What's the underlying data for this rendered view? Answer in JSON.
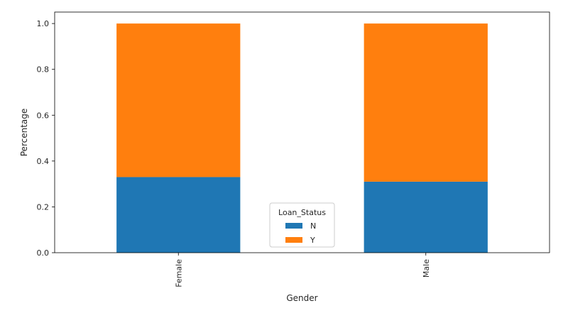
{
  "chart_data": {
    "type": "bar",
    "stacked": true,
    "categories": [
      "Female",
      "Male"
    ],
    "series": [
      {
        "name": "N",
        "values": [
          0.33,
          0.31
        ],
        "color": "#1f77b4"
      },
      {
        "name": "Y",
        "values": [
          0.67,
          0.69
        ],
        "color": "#ff7f0e"
      }
    ],
    "xlabel": "Gender",
    "ylabel": "Percentage",
    "ylim": [
      0,
      1.05
    ],
    "yticks": [
      "0.0",
      "0.2",
      "0.4",
      "0.6",
      "0.8",
      "1.0"
    ],
    "grid": false,
    "legend": {
      "title": "Loan_Status",
      "placement": "bottom-center"
    }
  }
}
